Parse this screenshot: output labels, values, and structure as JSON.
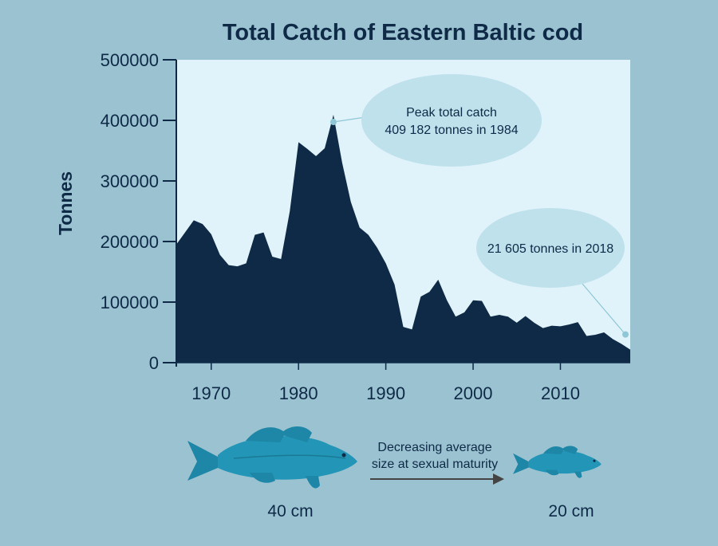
{
  "chart_data": {
    "type": "area",
    "title": "Total Catch of Eastern Baltic cod",
    "ylabel": "Tonnes",
    "xlabel": "",
    "xlim": [
      1966,
      2018
    ],
    "ylim": [
      0,
      500000
    ],
    "x_ticks": [
      1970,
      1980,
      1990,
      2000,
      2010
    ],
    "y_ticks": [
      0,
      100000,
      200000,
      300000,
      400000,
      500000
    ],
    "x": [
      1966,
      1967,
      1968,
      1969,
      1970,
      1971,
      1972,
      1973,
      1974,
      1975,
      1976,
      1977,
      1978,
      1979,
      1980,
      1981,
      1982,
      1983,
      1984,
      1985,
      1986,
      1987,
      1988,
      1989,
      1990,
      1991,
      1992,
      1993,
      1994,
      1995,
      1996,
      1997,
      1998,
      1999,
      2000,
      2001,
      2002,
      2003,
      2004,
      2005,
      2006,
      2007,
      2008,
      2009,
      2010,
      2011,
      2012,
      2013,
      2014,
      2015,
      2016,
      2017,
      2018
    ],
    "values": [
      195000,
      215000,
      235000,
      229000,
      212000,
      178000,
      161000,
      159000,
      164000,
      211000,
      215000,
      175000,
      171000,
      250000,
      364000,
      353000,
      341000,
      354000,
      409182,
      330000,
      265000,
      223000,
      211000,
      190000,
      164000,
      129000,
      59000,
      55000,
      109000,
      117000,
      137000,
      103000,
      76000,
      83000,
      103000,
      102000,
      76000,
      79000,
      76000,
      66000,
      77000,
      66000,
      57000,
      61000,
      60000,
      63000,
      67000,
      44000,
      46000,
      50000,
      39000,
      31000,
      21605
    ],
    "color": "#0e2a47",
    "plot_background": "#e0f2fa",
    "annotations": [
      {
        "name": "peak",
        "x": 1984,
        "y": 409182,
        "lines": [
          "Peak total catch",
          "409 182 tonnes in 1984"
        ]
      },
      {
        "name": "latest",
        "x": 2018,
        "y": 36000,
        "lines": [
          "21 605 tonnes in 2018"
        ]
      }
    ]
  },
  "size_panel": {
    "caption_lines": [
      "Decreasing average",
      "size at sexual maturity"
    ],
    "large_fish_label": "40 cm",
    "small_fish_label": "20 cm",
    "fish_color": "#2396b7"
  }
}
